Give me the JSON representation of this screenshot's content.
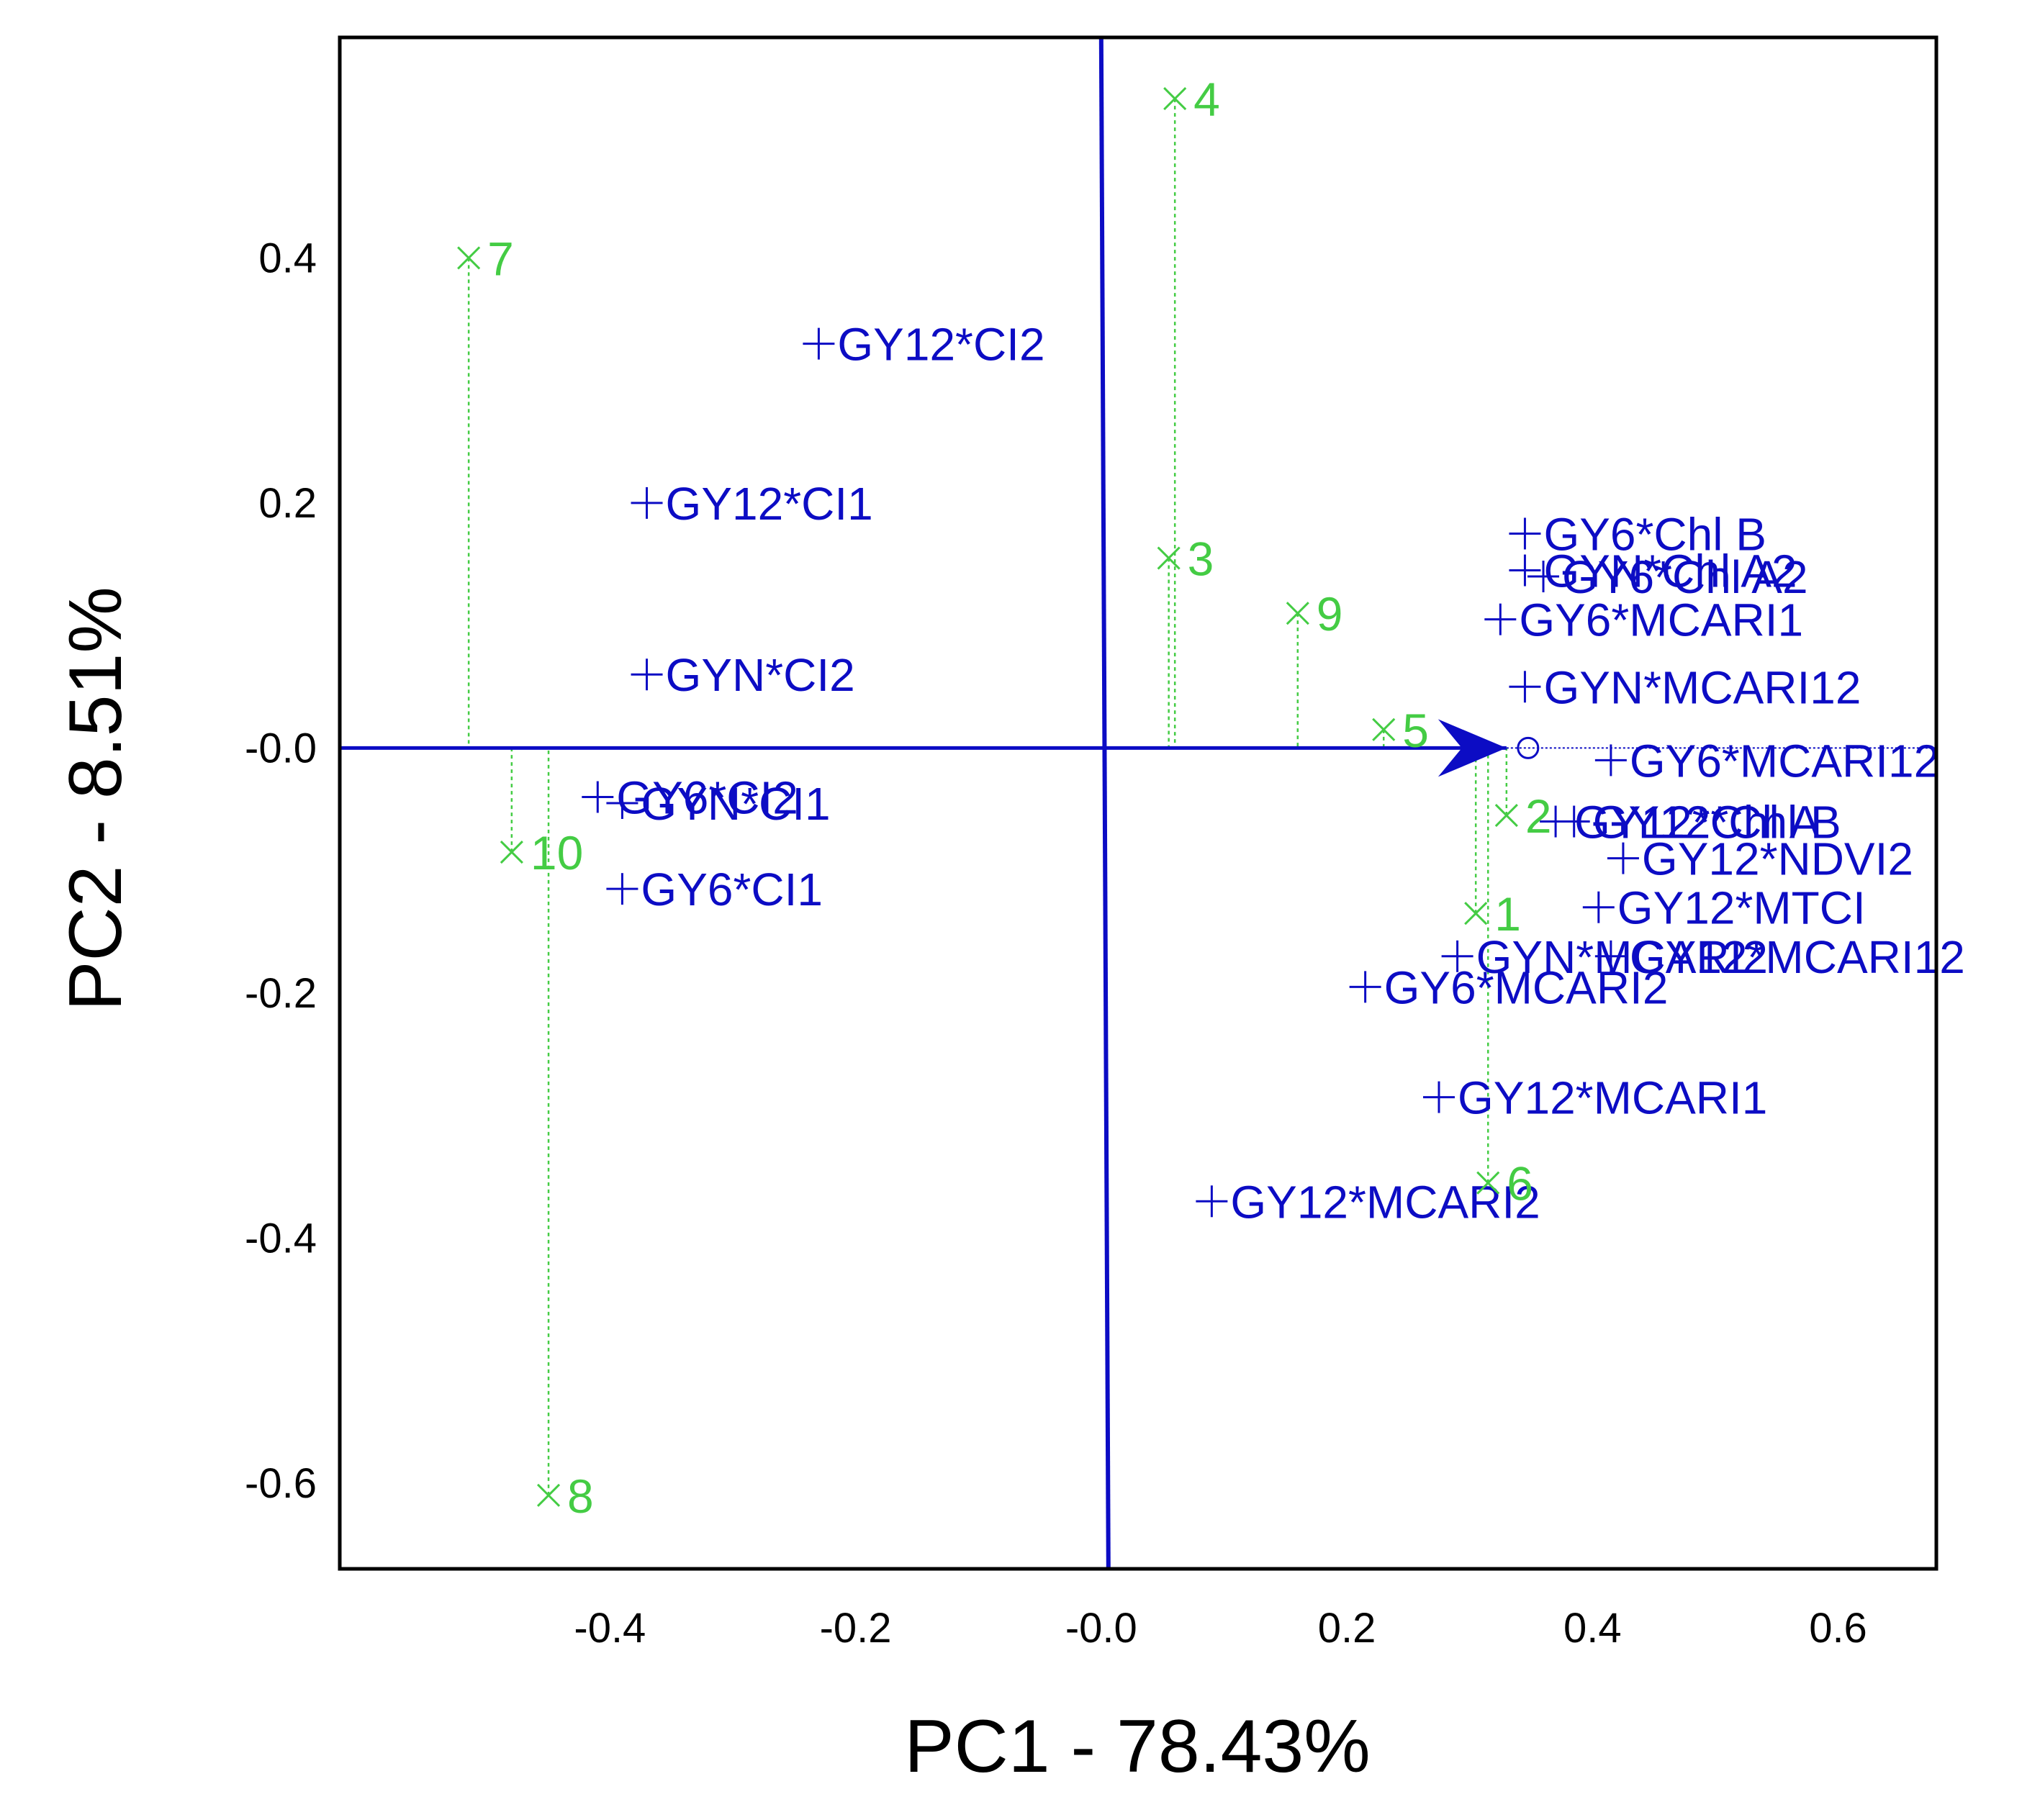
{
  "chart_data": {
    "type": "scatter",
    "subtype": "biplot",
    "title": "",
    "xlabel": "PC1 - 78.43%",
    "ylabel": "PC2 - 8.51%",
    "xlim": [
      -0.62,
      0.68
    ],
    "ylim": [
      -0.67,
      0.58
    ],
    "x_ticks": [
      {
        "value": -0.4,
        "label": "-0.4"
      },
      {
        "value": -0.2,
        "label": "-0.2"
      },
      {
        "value": 0.0,
        "label": "-0.0"
      },
      {
        "value": 0.2,
        "label": "0.2"
      },
      {
        "value": 0.4,
        "label": "0.4"
      },
      {
        "value": 0.6,
        "label": "0.6"
      }
    ],
    "y_ticks": [
      {
        "value": 0.4,
        "label": "0.4"
      },
      {
        "value": 0.2,
        "label": "0.2"
      },
      {
        "value": 0.0,
        "label": "-0.0"
      },
      {
        "value": -0.2,
        "label": "-0.2"
      },
      {
        "value": -0.4,
        "label": "-0.4"
      },
      {
        "value": -0.6,
        "label": "-0.6"
      }
    ],
    "grid": false,
    "colors": {
      "variables": "#0c0cc4",
      "observations": "#44cc44",
      "axes": "#0c0cc4",
      "frame": "#000000"
    },
    "arrow": {
      "x": 0.33,
      "y": 0.0
    },
    "variables": [
      {
        "label": "GY12*CI2",
        "x": -0.23,
        "y": 0.33
      },
      {
        "label": "GY12*CI1",
        "x": -0.37,
        "y": 0.2
      },
      {
        "label": "GYN*CI2",
        "x": -0.37,
        "y": 0.06
      },
      {
        "label": "GY6*CI2",
        "x": -0.41,
        "y": -0.04
      },
      {
        "label": "GYN*CI1",
        "x": -0.39,
        "y": -0.045
      },
      {
        "label": "GY6*CI1",
        "x": -0.39,
        "y": -0.115
      },
      {
        "label": "GY6*Chl B",
        "x": 0.345,
        "y": 0.175
      },
      {
        "label": "GYN*Chl A2",
        "x": 0.345,
        "y": 0.145,
        "overlap": true
      },
      {
        "label": "GY6*Chl A2",
        "x": 0.36,
        "y": 0.14,
        "overlap": true
      },
      {
        "label": "GY6*MCARI1",
        "x": 0.325,
        "y": 0.105,
        "overlap": true
      },
      {
        "label": "GYN*MCARI12",
        "x": 0.345,
        "y": 0.05,
        "overlap": true
      },
      {
        "label": "GY6*MCARI12",
        "x": 0.415,
        "y": -0.01
      },
      {
        "label": "GY12*Chl A",
        "x": 0.37,
        "y": -0.06,
        "overlap": true
      },
      {
        "label": "GY12*Chl B",
        "x": 0.385,
        "y": -0.06,
        "overlap": true
      },
      {
        "label": "GY12*NDVI2",
        "x": 0.425,
        "y": -0.09
      },
      {
        "label": "GY12*MTCI",
        "x": 0.405,
        "y": -0.13,
        "overlap": true
      },
      {
        "label": "GY12*MCARI12",
        "x": 0.415,
        "y": -0.17,
        "overlap": true
      },
      {
        "label": "GYN*MCARI2",
        "x": 0.29,
        "y": -0.17,
        "overlap": true
      },
      {
        "label": "GY6*MCARI2",
        "x": 0.215,
        "y": -0.195
      },
      {
        "label": "GY12*MCARI1",
        "x": 0.275,
        "y": -0.285
      },
      {
        "label": "GY12*MCARI2",
        "x": 0.09,
        "y": -0.37
      }
    ],
    "observations": [
      {
        "label": "1",
        "x": 0.305,
        "y": -0.135
      },
      {
        "label": "2",
        "x": 0.33,
        "y": -0.055
      },
      {
        "label": "3",
        "x": 0.055,
        "y": 0.155
      },
      {
        "label": "4",
        "x": 0.06,
        "y": 0.53
      },
      {
        "label": "5",
        "x": 0.23,
        "y": 0.015
      },
      {
        "label": "6",
        "x": 0.315,
        "y": -0.355
      },
      {
        "label": "7",
        "x": -0.515,
        "y": 0.4
      },
      {
        "label": "8",
        "x": -0.45,
        "y": -0.61
      },
      {
        "label": "9",
        "x": 0.16,
        "y": 0.11
      },
      {
        "label": "10",
        "x": -0.48,
        "y": -0.085
      }
    ]
  }
}
